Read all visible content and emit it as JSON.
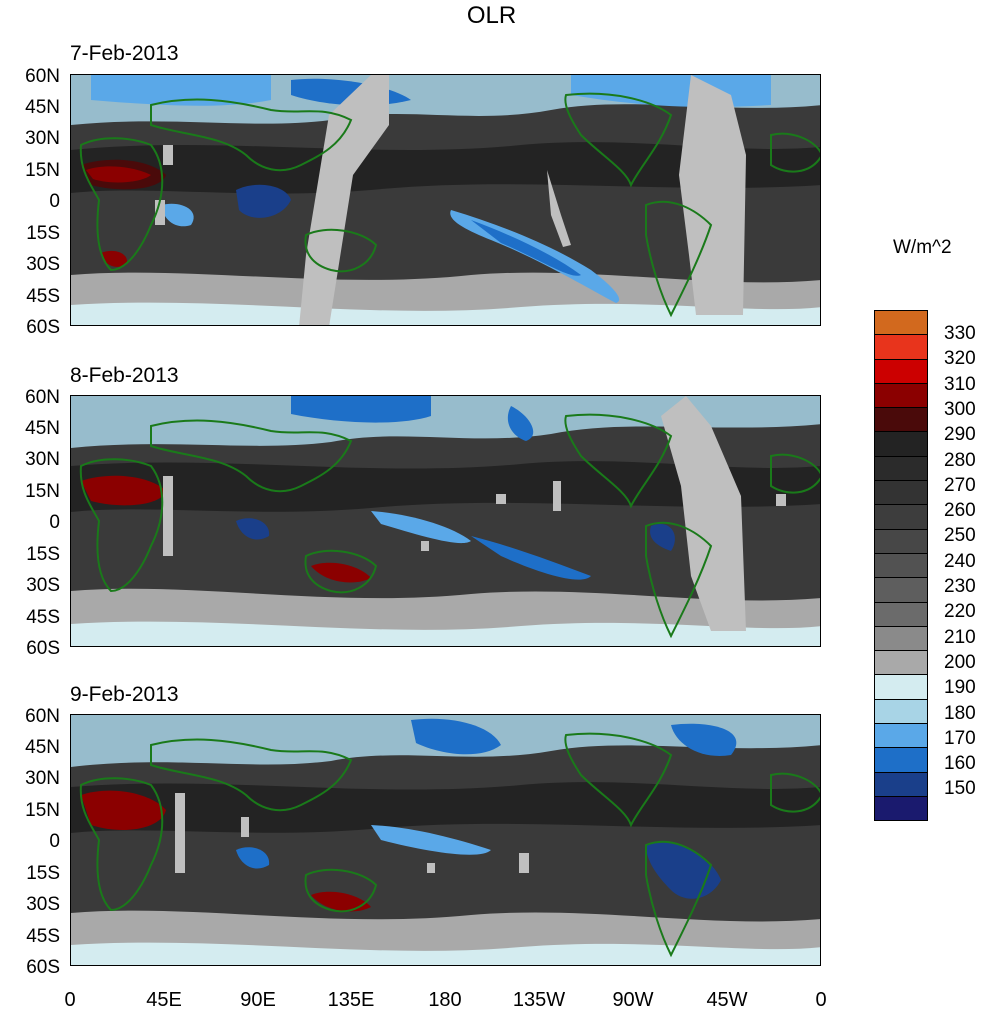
{
  "title": "OLR",
  "panels": [
    {
      "date": "7-Feb-2013"
    },
    {
      "date": "8-Feb-2013"
    },
    {
      "date": "9-Feb-2013"
    }
  ],
  "lat_labels": [
    "60N",
    "45N",
    "30N",
    "15N",
    "0",
    "15S",
    "30S",
    "45S",
    "60S"
  ],
  "lon_labels": [
    "0",
    "45E",
    "90E",
    "135E",
    "180",
    "135W",
    "90W",
    "45W",
    "0"
  ],
  "colorbar": {
    "units": "W/m^2",
    "levels": [
      "330",
      "320",
      "310",
      "300",
      "290",
      "280",
      "270",
      "260",
      "250",
      "240",
      "230",
      "220",
      "210",
      "200",
      "190",
      "180",
      "170",
      "160",
      "150"
    ],
    "colors": [
      "#d2691e",
      "#e8341c",
      "#cc0000",
      "#8b0000",
      "#4a0a0a",
      "#232323",
      "#2b2b2b",
      "#333333",
      "#3d3d3d",
      "#474747",
      "#525252",
      "#5e5e5e",
      "#6b6b6b",
      "#8a8a8a",
      "#a9a9a9",
      "#d4ecf0",
      "#a8d4e6",
      "#5aa8e8",
      "#1e6fc8",
      "#1a3f8a",
      "#1a1a6e"
    ]
  },
  "colors": {
    "coastline": "#1a7a1a",
    "missing": "#bfbfbf"
  }
}
